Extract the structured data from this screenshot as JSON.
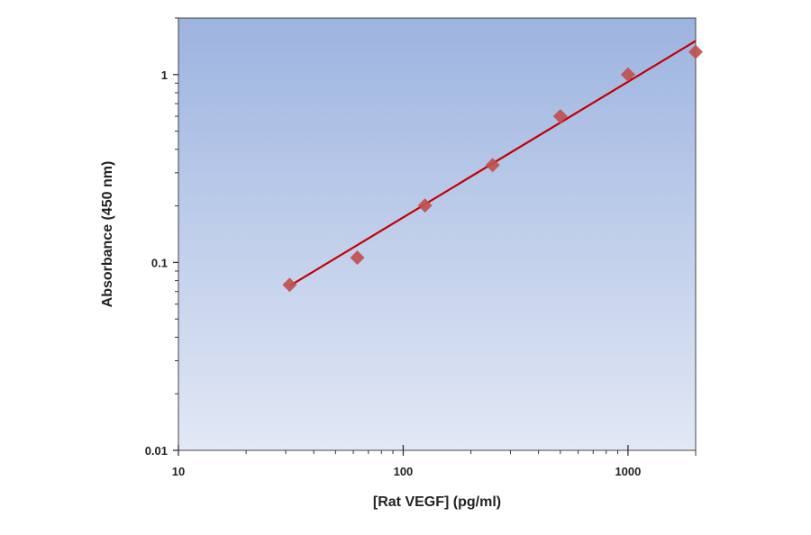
{
  "chart_data": {
    "type": "scatter",
    "title": "",
    "xlabel": "[Rat VEGF] (pg/ml)",
    "ylabel": "Absorbance (450 nm)",
    "xscale": "log",
    "yscale": "log",
    "xlim": [
      10,
      2000
    ],
    "ylim": [
      0.01,
      2
    ],
    "x_ticks": [
      10,
      100,
      1000
    ],
    "x_tick_labels": [
      "10",
      "100",
      "1000"
    ],
    "y_ticks": [
      0.01,
      0.1,
      1
    ],
    "y_tick_labels": [
      "0.01",
      "0.1",
      "1"
    ],
    "grid": false,
    "legend": "none",
    "background": "vertical gradient, #9db4e0 top to #e2e8f5 bottom",
    "series": [
      {
        "marker": "diamond",
        "color": "#c0504d",
        "x": [
          31.25,
          62.5,
          125,
          250,
          500,
          1000,
          2000
        ],
        "y": [
          0.076,
          0.106,
          0.201,
          0.33,
          0.6,
          1.0,
          1.32
        ]
      }
    ],
    "fit_line": {
      "color": "#c00000",
      "x": [
        31.25,
        2000
      ],
      "y": [
        0.075,
        1.51
      ]
    }
  }
}
